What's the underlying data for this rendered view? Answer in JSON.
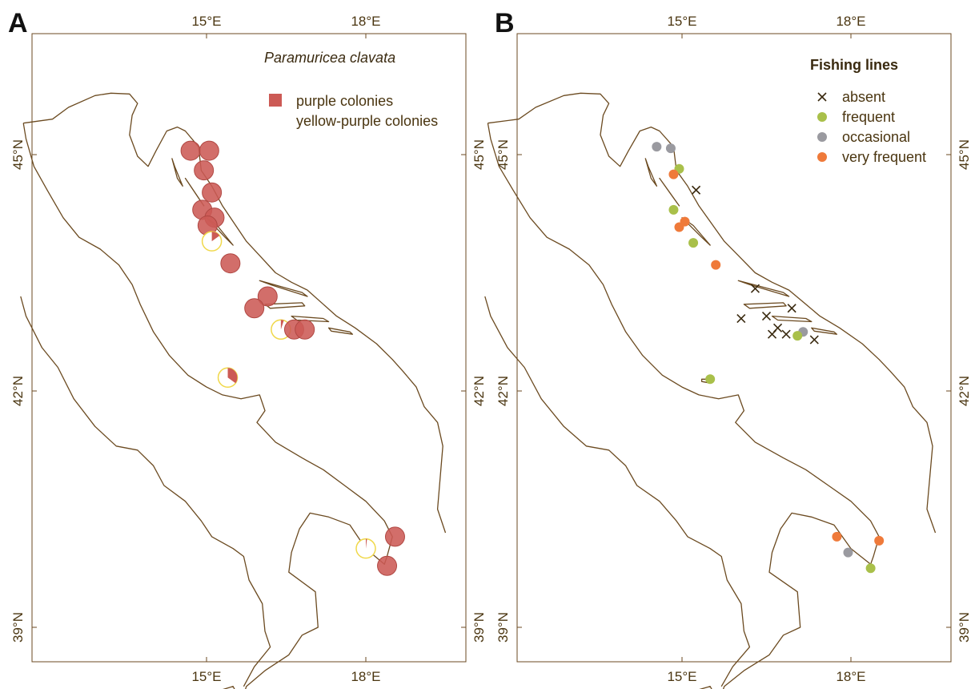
{
  "panels": {
    "A": {
      "letter": "A",
      "species": "Paramuricea clavata",
      "legend": {
        "purple_label": "purple colonies",
        "yellow_label": "yellow-purple colonies"
      },
      "colors": {
        "purple": "#cc5a55",
        "yellow": "#f0d84a"
      },
      "sites": [
        {
          "lon": 14.7,
          "lat": 45.05,
          "type": "purple"
        },
        {
          "lon": 15.05,
          "lat": 45.05,
          "type": "purple"
        },
        {
          "lon": 14.95,
          "lat": 44.8,
          "type": "purple"
        },
        {
          "lon": 15.1,
          "lat": 44.52,
          "type": "purple"
        },
        {
          "lon": 14.92,
          "lat": 44.3,
          "type": "purple"
        },
        {
          "lon": 15.15,
          "lat": 44.2,
          "type": "purple"
        },
        {
          "lon": 15.02,
          "lat": 44.1,
          "type": "purple"
        },
        {
          "lon": 15.1,
          "lat": 43.9,
          "type": "yellow-purple",
          "purple_frac": 0.15
        },
        {
          "lon": 15.45,
          "lat": 43.62,
          "type": "purple"
        },
        {
          "lon": 16.15,
          "lat": 43.2,
          "type": "purple"
        },
        {
          "lon": 15.9,
          "lat": 43.05,
          "type": "purple"
        },
        {
          "lon": 16.4,
          "lat": 42.78,
          "type": "yellow-purple",
          "purple_frac": 0.05
        },
        {
          "lon": 16.65,
          "lat": 42.78,
          "type": "purple"
        },
        {
          "lon": 16.85,
          "lat": 42.78,
          "type": "purple"
        },
        {
          "lon": 15.4,
          "lat": 42.17,
          "type": "yellow-purple",
          "purple_frac": 0.35
        },
        {
          "lon": 18.55,
          "lat": 40.15,
          "type": "purple"
        },
        {
          "lon": 18.0,
          "lat": 40.0,
          "type": "yellow-purple",
          "purple_frac": 0.02
        },
        {
          "lon": 18.4,
          "lat": 39.78,
          "type": "purple"
        }
      ]
    },
    "B": {
      "letter": "B",
      "legend": {
        "title": "Fishing lines",
        "items": [
          {
            "label": "absent",
            "symbol": "cross",
            "color": "#3a2a10"
          },
          {
            "label": "frequent",
            "symbol": "dot",
            "color": "#a9c04a"
          },
          {
            "label": "occasional",
            "symbol": "dot",
            "color": "#9a9aa0"
          },
          {
            "label": "very frequent",
            "symbol": "dot",
            "color": "#ef7a3a"
          }
        ]
      },
      "sites": [
        {
          "lon": 14.55,
          "lat": 45.1,
          "cat": "occasional"
        },
        {
          "lon": 14.8,
          "lat": 45.08,
          "cat": "occasional"
        },
        {
          "lon": 14.95,
          "lat": 44.82,
          "cat": "frequent"
        },
        {
          "lon": 14.85,
          "lat": 44.75,
          "cat": "very frequent"
        },
        {
          "lon": 15.25,
          "lat": 44.55,
          "cat": "absent"
        },
        {
          "lon": 14.85,
          "lat": 44.3,
          "cat": "frequent"
        },
        {
          "lon": 15.05,
          "lat": 44.15,
          "cat": "very frequent"
        },
        {
          "lon": 14.95,
          "lat": 44.08,
          "cat": "very frequent"
        },
        {
          "lon": 15.2,
          "lat": 43.88,
          "cat": "frequent"
        },
        {
          "lon": 15.6,
          "lat": 43.6,
          "cat": "very frequent"
        },
        {
          "lon": 16.3,
          "lat": 43.3,
          "cat": "absent"
        },
        {
          "lon": 16.95,
          "lat": 43.05,
          "cat": "absent"
        },
        {
          "lon": 16.05,
          "lat": 42.92,
          "cat": "absent"
        },
        {
          "lon": 16.5,
          "lat": 42.95,
          "cat": "absent"
        },
        {
          "lon": 16.7,
          "lat": 42.8,
          "cat": "absent"
        },
        {
          "lon": 16.85,
          "lat": 42.72,
          "cat": "absent"
        },
        {
          "lon": 16.6,
          "lat": 42.72,
          "cat": "absent"
        },
        {
          "lon": 17.15,
          "lat": 42.75,
          "cat": "occasional"
        },
        {
          "lon": 17.05,
          "lat": 42.7,
          "cat": "frequent"
        },
        {
          "lon": 17.35,
          "lat": 42.65,
          "cat": "absent"
        },
        {
          "lon": 15.5,
          "lat": 42.15,
          "cat": "frequent"
        },
        {
          "lon": 17.75,
          "lat": 40.15,
          "cat": "very frequent"
        },
        {
          "lon": 17.95,
          "lat": 39.95,
          "cat": "occasional"
        },
        {
          "lon": 18.5,
          "lat": 40.1,
          "cat": "very frequent"
        },
        {
          "lon": 18.35,
          "lat": 39.75,
          "cat": "frequent"
        }
      ]
    }
  },
  "axes": {
    "lon_ticks": [
      {
        "value": 15,
        "label": "15°E"
      },
      {
        "value": 18,
        "label": "18°E"
      }
    ],
    "lat_ticks": [
      {
        "value": 45,
        "label": "45°N"
      },
      {
        "value": 42,
        "label": "42°N"
      },
      {
        "value": 39,
        "label": "39°N"
      }
    ]
  }
}
